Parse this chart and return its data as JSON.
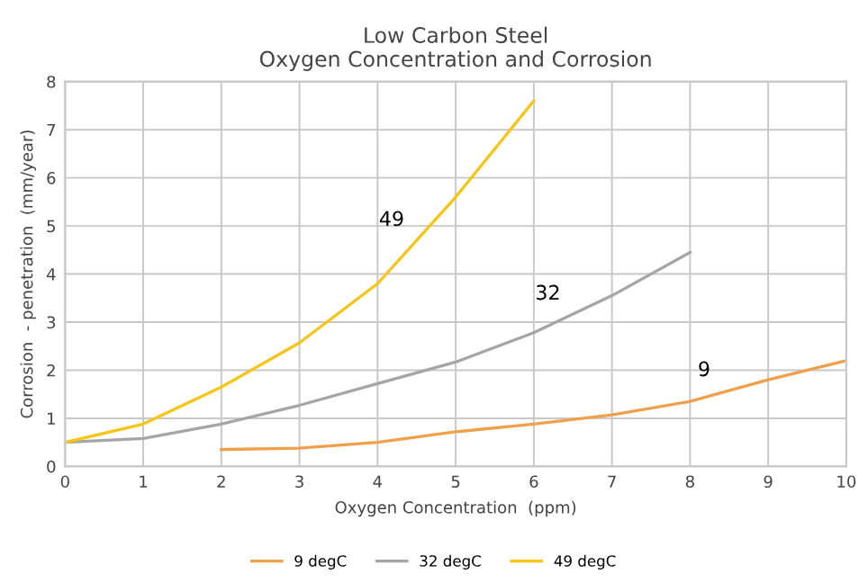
{
  "chart_data": {
    "type": "line",
    "title": "Low Carbon Steel\nOxygen Concentration and Corrosion",
    "xlabel": "Oxygen Concentration  (ppm)",
    "ylabel": "Corrosion  - penetration  (mm/year)",
    "series": [
      {
        "name": "9 degC",
        "color": "#f0a04b",
        "x": [
          2,
          3,
          4,
          5,
          6,
          7,
          8,
          9,
          10
        ],
        "values": [
          0.35,
          0.38,
          0.5,
          0.72,
          0.88,
          1.07,
          1.35,
          1.8,
          2.2
        ]
      },
      {
        "name": "32 degC",
        "color": "#a5a5a5",
        "x": [
          0,
          1,
          2,
          3,
          4,
          5,
          6,
          7,
          8
        ],
        "values": [
          0.5,
          0.58,
          0.88,
          1.27,
          1.72,
          2.17,
          2.78,
          3.55,
          4.45
        ]
      },
      {
        "name": "49 degC",
        "color": "#f5c518",
        "x": [
          0,
          1,
          2,
          3,
          4,
          5,
          6
        ],
        "values": [
          0.5,
          0.88,
          1.65,
          2.57,
          3.8,
          5.6,
          7.6
        ]
      }
    ],
    "annotations": [
      "49",
      "32",
      "9"
    ],
    "xlim": [
      0,
      10
    ],
    "xticks": [
      0,
      1,
      2,
      3,
      4,
      5,
      6,
      7,
      8,
      9,
      10
    ],
    "ylim": [
      0,
      8
    ],
    "yticks": [
      0,
      1,
      2,
      3,
      4,
      5,
      6,
      7,
      8
    ],
    "grid": true,
    "legend": "bottom",
    "marker": "none",
    "line_style": "solid"
  }
}
